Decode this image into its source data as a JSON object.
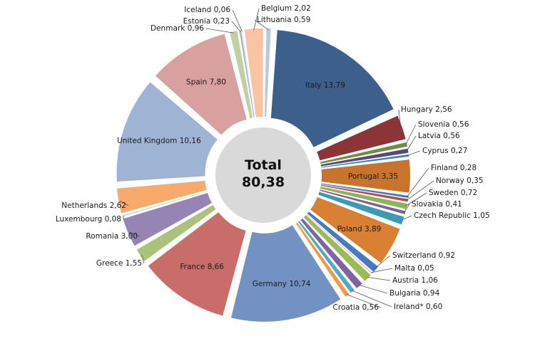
{
  "chart_data": {
    "type": "pie",
    "title": "",
    "center_label": "Total",
    "center_value": "80,38",
    "slices": [
      {
        "name": "Italy",
        "value": 13.79,
        "label": "13,79",
        "color": "#3d5f8c"
      },
      {
        "name": "Hungary",
        "value": 2.56,
        "label": "2,56",
        "color": "#8b3537"
      },
      {
        "name": "Slovenia",
        "value": 0.56,
        "label": "0,56",
        "color": "#6f8e3b"
      },
      {
        "name": "Latvia",
        "value": 0.56,
        "label": "0,56",
        "color": "#5a4680"
      },
      {
        "name": "Cyprus",
        "value": 0.27,
        "label": "0,27",
        "color": "#2f8aa0"
      },
      {
        "name": "Portugal",
        "value": 3.35,
        "label": "3,35",
        "color": "#c8742d"
      },
      {
        "name": "Finland",
        "value": 0.28,
        "label": "0,28",
        "color": "#4a70b8"
      },
      {
        "name": "Norway",
        "value": 0.35,
        "label": "0,35",
        "color": "#b54a4a"
      },
      {
        "name": "Sweden",
        "value": 0.72,
        "label": "0,72",
        "color": "#8fb357"
      },
      {
        "name": "Slovakia",
        "value": 0.41,
        "label": "0,41",
        "color": "#7a5fa6"
      },
      {
        "name": "Czech Republic",
        "value": 1.05,
        "label": "1,05",
        "color": "#3a9bb5"
      },
      {
        "name": "Poland",
        "value": 3.89,
        "label": "3,89",
        "color": "#d98032"
      },
      {
        "name": "Switzerland",
        "value": 0.92,
        "label": "0,92",
        "color": "#4a78c2"
      },
      {
        "name": "Malta",
        "value": 0.05,
        "label": "0,05",
        "color": "#c0504d"
      },
      {
        "name": "Austria",
        "value": 1.06,
        "label": "1,06",
        "color": "#9bbb59"
      },
      {
        "name": "Bulgaria",
        "value": 0.94,
        "label": "0,94",
        "color": "#8064a2"
      },
      {
        "name": "Ireland*",
        "value": 0.6,
        "label": "0,60",
        "color": "#4bacc6"
      },
      {
        "name": "Croatia",
        "value": 0.56,
        "label": "0,56",
        "color": "#f79646"
      },
      {
        "name": "Germany",
        "value": 10.74,
        "label": "10,74",
        "color": "#7392c4"
      },
      {
        "name": "France",
        "value": 8.66,
        "label": "8,66",
        "color": "#c96d6b"
      },
      {
        "name": "Greece",
        "value": 1.55,
        "label": "1,55",
        "color": "#a9c47a"
      },
      {
        "name": "Romania",
        "value": 3.0,
        "label": "3,00",
        "color": "#9684b4"
      },
      {
        "name": "Luxembourg",
        "value": 0.08,
        "label": "0,08",
        "color": "#7fc6d6"
      },
      {
        "name": "Netherlands",
        "value": 2.62,
        "label": "2,62",
        "color": "#f8a96c"
      },
      {
        "name": "United Kingdom",
        "value": 10.16,
        "label": "10,16",
        "color": "#9fb3d4"
      },
      {
        "name": "Spain",
        "value": 7.8,
        "label": "7,80",
        "color": "#d8a1a0"
      },
      {
        "name": "Denmark",
        "value": 0.96,
        "label": "0,96",
        "color": "#bfd1a0"
      },
      {
        "name": "Estonia",
        "value": 0.23,
        "label": "0,23",
        "color": "#b8a8cc"
      },
      {
        "name": "Iceland",
        "value": 0.06,
        "label": "0,06",
        "color": "#a6d4df"
      },
      {
        "name": "Belgium",
        "value": 2.02,
        "label": "2,02",
        "color": "#f8c4a4"
      },
      {
        "name": "Lithuania",
        "value": 0.59,
        "label": "0,59",
        "color": "#b8c8e0"
      }
    ]
  }
}
